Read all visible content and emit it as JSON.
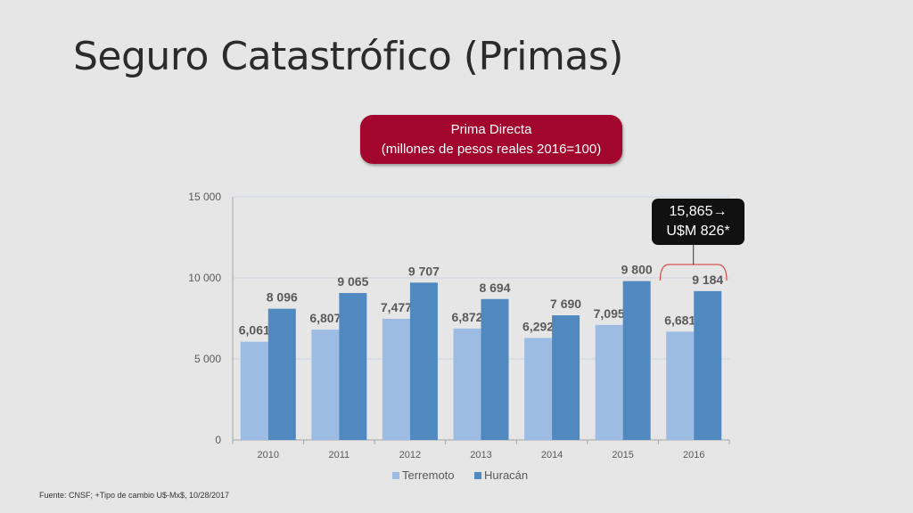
{
  "slide": {
    "title": "Seguro Catastrófico (Primas)",
    "source": "Fuente: CNSF; +Tipo de cambio U$-Mx$, 10/28/2017"
  },
  "badge": {
    "line1": "Prima Directa",
    "line2": "(millones de pesos reales 2016=100)"
  },
  "callout": {
    "line1": "15,865",
    "arrow": "→",
    "line2": "U$M 826*"
  },
  "colors": {
    "terremoto": "#9dbce3",
    "huracan": "#4f89c0",
    "label": "#5a5a5a",
    "badge": "#a3062d",
    "bracket": "#d9534f"
  },
  "chart_data": {
    "type": "bar",
    "categories": [
      "2010",
      "2011",
      "2012",
      "2013",
      "2014",
      "2015",
      "2016"
    ],
    "series": [
      {
        "name": "Terremoto",
        "values": [
          6061,
          6807,
          7477,
          6872,
          6292,
          7095,
          6681
        ],
        "labels": [
          "6,061",
          "6,807",
          "7,477",
          "6,872",
          "6,292",
          "7,095",
          "6,681"
        ]
      },
      {
        "name": "Huracán",
        "values": [
          8096,
          9065,
          9707,
          8694,
          7690,
          9800,
          9184
        ],
        "labels": [
          "8 096",
          "9 065",
          "9 707",
          "8 694",
          "7 690",
          "9 800",
          "9 184"
        ]
      }
    ],
    "yticks": [
      0,
      5000,
      10000,
      15000
    ],
    "ytick_labels": [
      "0",
      "5 000",
      "10 000",
      "15 000"
    ],
    "ylim": [
      0,
      15000
    ],
    "grid": true,
    "legend": "bottom",
    "annotation": {
      "category": "2016",
      "text": "15,865 → U$M 826*"
    }
  }
}
